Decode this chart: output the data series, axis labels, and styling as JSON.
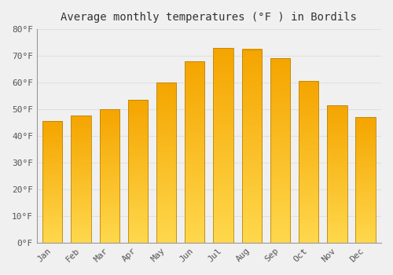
{
  "title": "Average monthly temperatures (°F ) in Bordils",
  "months": [
    "Jan",
    "Feb",
    "Mar",
    "Apr",
    "May",
    "Jun",
    "Jul",
    "Aug",
    "Sep",
    "Oct",
    "Nov",
    "Dec"
  ],
  "values": [
    45.5,
    47.5,
    50.0,
    53.5,
    60.0,
    68.0,
    73.0,
    72.5,
    69.0,
    60.5,
    51.5,
    47.0
  ],
  "bar_color_bottom": "#FFD84D",
  "bar_color_top": "#F5A500",
  "bar_edge_color": "#B8860B",
  "ylim": [
    0,
    80
  ],
  "yticks": [
    0,
    10,
    20,
    30,
    40,
    50,
    60,
    70,
    80
  ],
  "ytick_labels": [
    "0°F",
    "10°F",
    "20°F",
    "30°F",
    "40°F",
    "50°F",
    "60°F",
    "70°F",
    "80°F"
  ],
  "background_color": "#f0f0f0",
  "plot_bg_color": "#f0f0f0",
  "grid_color": "#e0e0e0",
  "title_fontsize": 10,
  "tick_fontsize": 8,
  "bar_width": 0.7
}
